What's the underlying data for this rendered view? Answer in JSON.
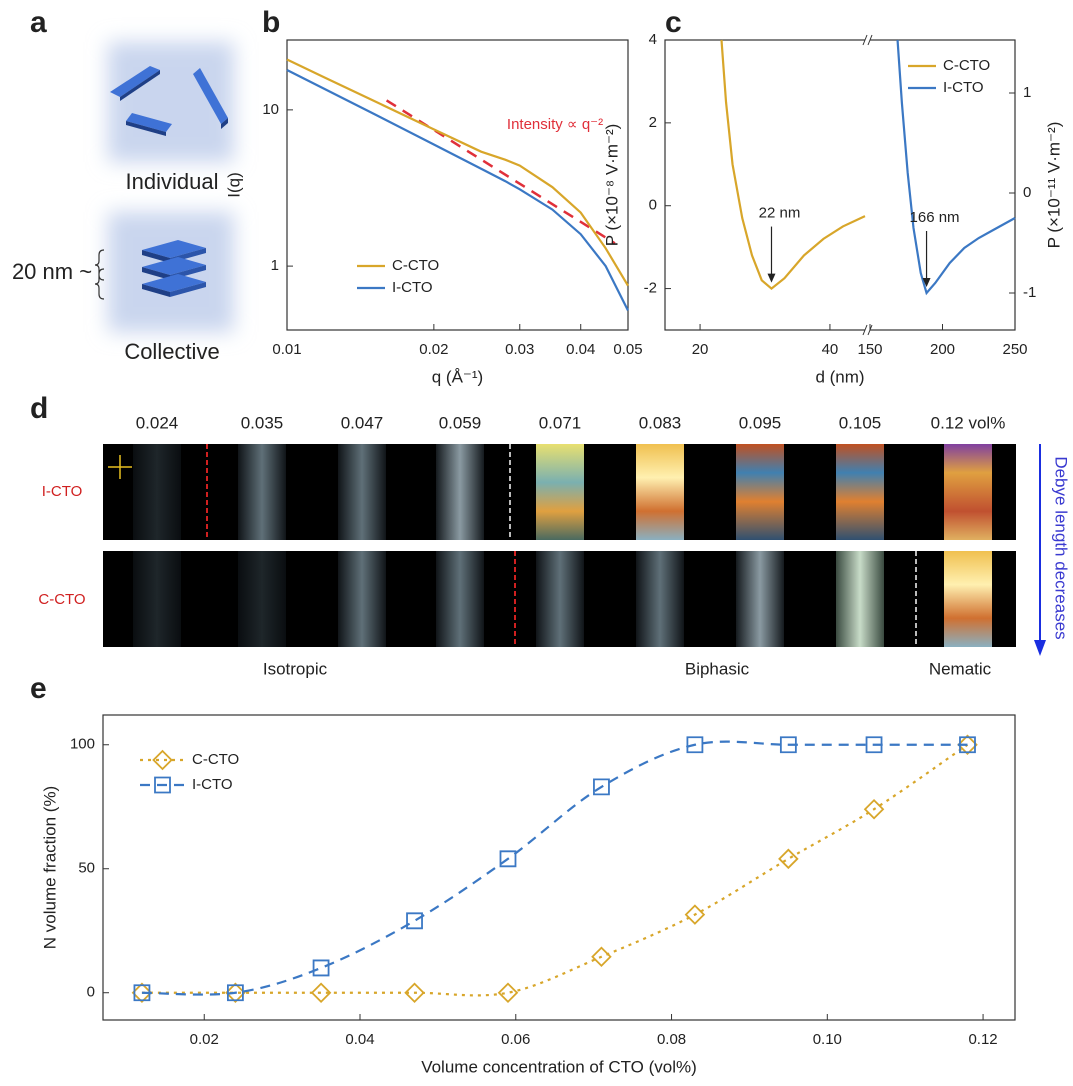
{
  "figure": {
    "panel_labels": [
      "a",
      "b",
      "c",
      "d",
      "e"
    ],
    "panel_a": {
      "individual": "Individual",
      "collective": "Collective",
      "spacing": "20 nm ~"
    },
    "panel_d": {
      "concentrations": [
        "0.024",
        "0.035",
        "0.047",
        "0.059",
        "0.071",
        "0.083",
        "0.095",
        "0.105",
        "0.12 vol%"
      ],
      "rows": [
        "I-CTO",
        "C-CTO"
      ],
      "arrow_label": "Debye length decreases",
      "phases": [
        "Isotropic",
        "Biphasic",
        "Nematic"
      ]
    }
  },
  "chart_data": [
    {
      "type": "line",
      "xlabel": "q (Å⁻¹)",
      "ylabel": "I(q)",
      "xscale": "log",
      "yscale": "log",
      "xlim": [
        0.01,
        0.05
      ],
      "ylim": [
        0.39,
        28
      ],
      "xticks": [
        0.01,
        0.02,
        0.03,
        0.04,
        0.05
      ],
      "yticks": [
        1,
        10
      ],
      "legend": "lower left",
      "annotation": "Intensity ∝ q⁻²",
      "reference_line": {
        "x": [
          0.016,
          0.047
        ],
        "y": [
          11.5,
          1.4
        ],
        "color": "#e0303a"
      },
      "x": [
        0.01,
        0.012,
        0.015,
        0.02,
        0.025,
        0.028,
        0.03,
        0.035,
        0.04,
        0.045,
        0.05
      ],
      "series": [
        {
          "name": "C-CTO",
          "color": "#d8a62a",
          "values": [
            21,
            16,
            11.5,
            7.5,
            5.4,
            4.8,
            4.4,
            3.2,
            2.2,
            1.3,
            0.75
          ]
        },
        {
          "name": "I-CTO",
          "color": "#3b78c4",
          "values": [
            18,
            13.5,
            9.5,
            6,
            4.2,
            3.5,
            3.1,
            2.3,
            1.6,
            1.0,
            0.52
          ]
        }
      ]
    },
    {
      "type": "line",
      "xlabel": "d (nm)",
      "ylabel": "P (×10⁻⁸ V·m⁻²)",
      "y2label": "P (×10⁻¹¹ V·m⁻²)",
      "xlim": [
        14.6,
        250
      ],
      "xbreak": [
        45.4,
        150
      ],
      "ylim": [
        -3,
        4
      ],
      "y2lim": [
        -1.37,
        1.53
      ],
      "xticks": [
        20,
        40,
        150,
        200,
        250
      ],
      "yticks": [
        -2,
        0,
        2,
        4
      ],
      "y2ticks": [
        -1,
        0,
        1
      ],
      "legend": "upper right",
      "annotations": [
        "22 nm",
        "166 nm"
      ],
      "series": [
        {
          "name": "C-CTO",
          "color": "#d8a62a",
          "x": [
            23.3,
            24,
            25,
            26.5,
            28,
            29.5,
            31,
            33,
            36,
            39,
            42,
            45.4
          ],
          "values": [
            4,
            2.5,
            1.0,
            -0.3,
            -1.2,
            -1.8,
            -2.0,
            -1.75,
            -1.2,
            -0.8,
            -0.5,
            -0.25
          ]
        },
        {
          "name": "I-CTO",
          "color": "#3b78c4",
          "axis": "y2",
          "x": [
            169,
            172,
            176,
            180,
            185,
            189,
            195,
            205,
            215,
            225,
            235,
            250
          ],
          "values": [
            1.53,
            0.9,
            0.2,
            -0.35,
            -0.8,
            -1.0,
            -0.9,
            -0.7,
            -0.55,
            -0.45,
            -0.37,
            -0.25
          ]
        }
      ]
    },
    {
      "type": "line",
      "xlabel": "Volume concentration of CTO (vol%)",
      "ylabel": "N volume fraction (%)",
      "xlim": [
        0.007,
        0.1241
      ],
      "ylim": [
        -11,
        112
      ],
      "xticks": [
        0.02,
        0.04,
        0.06,
        0.08,
        {
          "value": 0.1,
          "label": "0.10"
        },
        0.12
      ],
      "yticks": [
        0,
        50,
        100
      ],
      "legend": "upper left",
      "smooth": true,
      "x": [
        0.012,
        0.024,
        0.035,
        0.047,
        0.059,
        0.071,
        0.083,
        0.095,
        0.106,
        0.118
      ],
      "series": [
        {
          "name": "C-CTO",
          "color": "#d8a62a",
          "marker": "diamond",
          "linestyle": "dotted",
          "values": [
            0,
            0,
            0,
            0,
            0,
            14.5,
            31.5,
            54,
            74,
            100
          ]
        },
        {
          "name": "I-CTO",
          "color": "#3b78c4",
          "marker": "square",
          "linestyle": "dashed",
          "values": [
            0,
            0,
            10,
            29,
            54,
            83,
            100,
            100,
            100,
            100
          ]
        }
      ]
    }
  ]
}
